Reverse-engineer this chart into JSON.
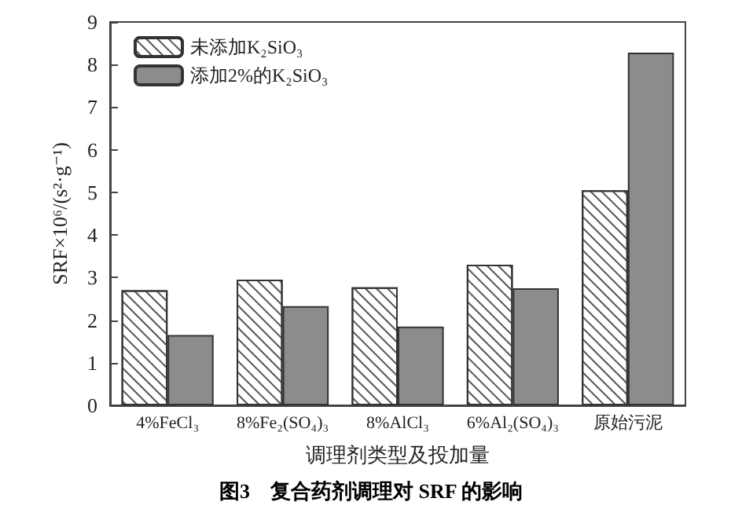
{
  "chart_data": {
    "type": "bar",
    "title": "图3　复合药剂调理对 SRF 的影响",
    "xlabel": "调理剂类型及投加量",
    "ylabel": "SRF×10⁶/(s²·g⁻¹)",
    "categories": [
      "4%FeCl₃",
      "8%Fe₂(SO₄)₃",
      "8%AlCl₃",
      "6%Al₂(SO₄)₃",
      "原始污泥"
    ],
    "series": [
      {
        "name": "未添加K₂SiO₃",
        "color": "#ffffff",
        "values": [
          2.7,
          2.95,
          2.77,
          3.3,
          5.05
        ]
      },
      {
        "name": "添加2%的K₂SiO₃",
        "color": "#8c8c8c",
        "values": [
          1.65,
          2.33,
          1.85,
          2.75,
          8.28
        ]
      }
    ],
    "ylim": [
      0,
      9
    ],
    "yticks": [
      0,
      1,
      2,
      3,
      4,
      5,
      6,
      7,
      8,
      9
    ],
    "grid": false,
    "legend": "top left"
  }
}
